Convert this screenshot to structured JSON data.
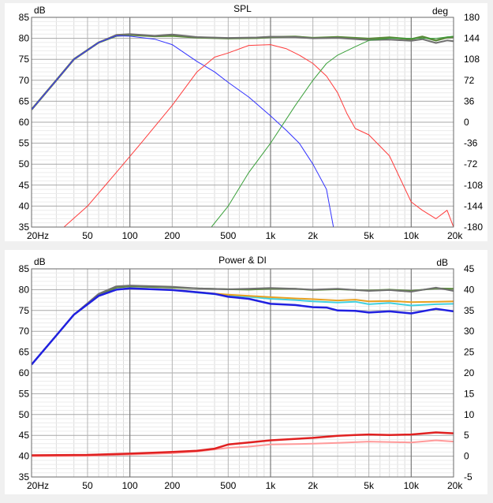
{
  "chart_data": [
    {
      "type": "line",
      "title": "SPL",
      "left_unit": "dB",
      "right_unit": "deg",
      "x_scale": "log",
      "xlim": [
        20,
        20000
      ],
      "ylim": [
        35,
        85
      ],
      "y2lim": [
        -180,
        180
      ],
      "grid": true,
      "x_ticks": [
        {
          "value": 20,
          "label": "20Hz"
        },
        {
          "value": 50,
          "label": "50"
        },
        {
          "value": 100,
          "label": "100"
        },
        {
          "value": 200,
          "label": "200"
        },
        {
          "value": 500,
          "label": "500"
        },
        {
          "value": 1000,
          "label": "1k"
        },
        {
          "value": 2000,
          "label": "2k"
        },
        {
          "value": 5000,
          "label": "5k"
        },
        {
          "value": 10000,
          "label": "10k"
        },
        {
          "value": 20000,
          "label": "20k"
        }
      ],
      "y_ticks": [
        35,
        40,
        45,
        50,
        55,
        60,
        65,
        70,
        75,
        80,
        85
      ],
      "y2_ticks": [
        "-180",
        "-144",
        "-108",
        "-72",
        "-36",
        "0",
        "36",
        "72",
        "108",
        "144",
        "180"
      ],
      "series": [
        {
          "color": "#5a8a3a",
          "width": 2.5,
          "points": [
            [
              20,
              63
            ],
            [
              30,
              70
            ],
            [
              40,
              75
            ],
            [
              60,
              79
            ],
            [
              80,
              80.6
            ],
            [
              100,
              80.8
            ],
            [
              150,
              80.5
            ],
            [
              200,
              80.6
            ],
            [
              300,
              80.2
            ],
            [
              500,
              80.0
            ],
            [
              800,
              80.1
            ],
            [
              1000,
              80.3
            ],
            [
              1500,
              80.4
            ],
            [
              2000,
              80.1
            ],
            [
              3000,
              80.3
            ],
            [
              5000,
              79.9
            ],
            [
              7000,
              80.2
            ],
            [
              10000,
              79.8
            ],
            [
              12000,
              80.4
            ],
            [
              15000,
              79.5
            ],
            [
              18000,
              80.2
            ],
            [
              20000,
              80.3
            ]
          ]
        },
        {
          "color": "#707070",
          "width": 2,
          "points": [
            [
              20,
              63
            ],
            [
              30,
              70
            ],
            [
              40,
              75
            ],
            [
              60,
              79
            ],
            [
              80,
              80.8
            ],
            [
              100,
              81
            ],
            [
              150,
              80.6
            ],
            [
              200,
              80.9
            ],
            [
              300,
              80.3
            ],
            [
              500,
              80.1
            ],
            [
              800,
              80.2
            ],
            [
              1000,
              80.4
            ],
            [
              1500,
              80.3
            ],
            [
              2000,
              80.0
            ],
            [
              3000,
              80.1
            ],
            [
              5000,
              79.6
            ],
            [
              7000,
              79.7
            ],
            [
              10000,
              79.4
            ],
            [
              12000,
              79.8
            ],
            [
              15000,
              78.9
            ],
            [
              18000,
              79.5
            ],
            [
              20000,
              79.3
            ]
          ]
        },
        {
          "color": "#3232ff",
          "width": 1,
          "points": [
            [
              20,
              63
            ],
            [
              30,
              70
            ],
            [
              40,
              75
            ],
            [
              60,
              79
            ],
            [
              80,
              80.6
            ],
            [
              100,
              80.5
            ],
            [
              150,
              79.8
            ],
            [
              200,
              78.5
            ],
            [
              300,
              74.5
            ],
            [
              400,
              72
            ],
            [
              500,
              69.5
            ],
            [
              700,
              66
            ],
            [
              1000,
              61.5
            ],
            [
              1300,
              58
            ],
            [
              1600,
              55
            ],
            [
              2000,
              50
            ],
            [
              2500,
              44
            ],
            [
              2800,
              35
            ]
          ]
        },
        {
          "color": "#ff3c3c",
          "width": 1,
          "points": [
            [
              34,
              35
            ],
            [
              50,
              40
            ],
            [
              80,
              48
            ],
            [
              120,
              55
            ],
            [
              200,
              64
            ],
            [
              300,
              72
            ],
            [
              400,
              75.5
            ],
            [
              500,
              76.5
            ],
            [
              700,
              78.3
            ],
            [
              1000,
              78.5
            ],
            [
              1300,
              77.5
            ],
            [
              1600,
              76
            ],
            [
              2000,
              74
            ],
            [
              2500,
              71
            ],
            [
              3000,
              67
            ],
            [
              3500,
              62
            ],
            [
              4000,
              58.5
            ],
            [
              5000,
              57
            ],
            [
              7000,
              52
            ],
            [
              10000,
              41
            ],
            [
              12000,
              39
            ],
            [
              15000,
              37
            ],
            [
              18000,
              39
            ],
            [
              20000,
              35
            ]
          ]
        },
        {
          "color": "#3aa03a",
          "width": 1,
          "points": [
            [
              380,
              35
            ],
            [
              500,
              40
            ],
            [
              700,
              48
            ],
            [
              1000,
              55
            ],
            [
              1500,
              64
            ],
            [
              2000,
              70
            ],
            [
              2500,
              74
            ],
            [
              3000,
              76
            ],
            [
              4000,
              78
            ],
            [
              5000,
              79.5
            ],
            [
              7000,
              80
            ],
            [
              10000,
              80
            ],
            [
              15000,
              80
            ],
            [
              20000,
              80.5
            ]
          ]
        }
      ]
    },
    {
      "type": "line",
      "title": "Power & DI",
      "left_unit": "dB",
      "right_unit": "dB",
      "x_scale": "log",
      "xlim": [
        20,
        20000
      ],
      "ylim": [
        35,
        85
      ],
      "y2lim": [
        -5,
        45
      ],
      "grid": true,
      "x_ticks": [
        {
          "value": 20,
          "label": "20Hz"
        },
        {
          "value": 50,
          "label": "50"
        },
        {
          "value": 100,
          "label": "100"
        },
        {
          "value": 200,
          "label": "200"
        },
        {
          "value": 500,
          "label": "500"
        },
        {
          "value": 1000,
          "label": "1k"
        },
        {
          "value": 2000,
          "label": "2k"
        },
        {
          "value": 5000,
          "label": "5k"
        },
        {
          "value": 10000,
          "label": "10k"
        },
        {
          "value": 20000,
          "label": "20k"
        }
      ],
      "y_ticks": [
        35,
        40,
        45,
        50,
        55,
        60,
        65,
        70,
        75,
        80,
        85
      ],
      "y2_ticks": [
        "-5",
        "0",
        "5",
        "10",
        "15",
        "20",
        "25",
        "30",
        "35",
        "40",
        "45"
      ],
      "series": [
        {
          "color": "#40d0e0",
          "width": 2,
          "points": [
            [
              20,
              62
            ],
            [
              30,
              69
            ],
            [
              40,
              74
            ],
            [
              60,
              78.5
            ],
            [
              80,
              80
            ],
            [
              100,
              80.3
            ],
            [
              200,
              80
            ],
            [
              300,
              79.3
            ],
            [
              500,
              78.6
            ],
            [
              700,
              78.3
            ],
            [
              1000,
              77.8
            ],
            [
              1500,
              77.5
            ],
            [
              2000,
              77.2
            ],
            [
              3000,
              76.9
            ],
            [
              4000,
              77.1
            ],
            [
              5000,
              76.5
            ],
            [
              7000,
              76.8
            ],
            [
              10000,
              76.2
            ],
            [
              15000,
              76.5
            ],
            [
              20000,
              76.6
            ]
          ]
        },
        {
          "color": "#e8a020",
          "width": 2,
          "points": [
            [
              20,
              62
            ],
            [
              30,
              69
            ],
            [
              40,
              74
            ],
            [
              60,
              78.5
            ],
            [
              80,
              80
            ],
            [
              100,
              80.3
            ],
            [
              200,
              80
            ],
            [
              300,
              79.4
            ],
            [
              500,
              78.8
            ],
            [
              700,
              78.5
            ],
            [
              1000,
              78.2
            ],
            [
              1500,
              77.9
            ],
            [
              2000,
              77.7
            ],
            [
              3000,
              77.4
            ],
            [
              4000,
              77.6
            ],
            [
              5000,
              77.2
            ],
            [
              7000,
              77.3
            ],
            [
              10000,
              77
            ],
            [
              15000,
              77.1
            ],
            [
              20000,
              77.2
            ]
          ]
        },
        {
          "color": "#5a8a3a",
          "width": 2,
          "points": [
            [
              20,
              62
            ],
            [
              30,
              69
            ],
            [
              40,
              74
            ],
            [
              60,
              78.8
            ],
            [
              80,
              80.5
            ],
            [
              100,
              80.8
            ],
            [
              200,
              80.5
            ],
            [
              300,
              80.3
            ],
            [
              500,
              80.1
            ],
            [
              700,
              80
            ],
            [
              1000,
              80.2
            ],
            [
              1500,
              80.2
            ],
            [
              2000,
              79.9
            ],
            [
              3000,
              80.1
            ],
            [
              5000,
              79.8
            ],
            [
              7000,
              80
            ],
            [
              10000,
              79.7
            ],
            [
              15000,
              80.3
            ],
            [
              20000,
              80.2
            ]
          ]
        },
        {
          "color": "#707070",
          "width": 2,
          "points": [
            [
              20,
              62
            ],
            [
              30,
              69
            ],
            [
              40,
              74
            ],
            [
              60,
              79
            ],
            [
              80,
              80.8
            ],
            [
              100,
              81
            ],
            [
              200,
              80.7
            ],
            [
              300,
              80.3
            ],
            [
              500,
              80.1
            ],
            [
              700,
              80.2
            ],
            [
              1000,
              80.4
            ],
            [
              1500,
              80.2
            ],
            [
              2000,
              80
            ],
            [
              3000,
              80.2
            ],
            [
              5000,
              79.7
            ],
            [
              7000,
              79.9
            ],
            [
              10000,
              79.5
            ],
            [
              15000,
              80.5
            ],
            [
              20000,
              79.7
            ]
          ]
        },
        {
          "color": "#2020e0",
          "width": 2.5,
          "points": [
            [
              20,
              62
            ],
            [
              30,
              69
            ],
            [
              40,
              74
            ],
            [
              60,
              78.5
            ],
            [
              80,
              80
            ],
            [
              100,
              80.3
            ],
            [
              200,
              79.9
            ],
            [
              300,
              79.4
            ],
            [
              400,
              79
            ],
            [
              500,
              78.3
            ],
            [
              700,
              77.8
            ],
            [
              1000,
              76.6
            ],
            [
              1500,
              76.3
            ],
            [
              2000,
              75.8
            ],
            [
              2500,
              75.7
            ],
            [
              3000,
              75
            ],
            [
              4000,
              74.9
            ],
            [
              5000,
              74.5
            ],
            [
              7000,
              74.8
            ],
            [
              10000,
              74.3
            ],
            [
              15000,
              75.4
            ],
            [
              20000,
              74.8
            ]
          ]
        },
        {
          "color": "#ff9a9a",
          "width": 2,
          "points": [
            [
              20,
              40
            ],
            [
              50,
              40.1
            ],
            [
              100,
              40.4
            ],
            [
              200,
              40.7
            ],
            [
              300,
              41.1
            ],
            [
              500,
              42
            ],
            [
              700,
              42.3
            ],
            [
              1000,
              42.8
            ],
            [
              2000,
              43
            ],
            [
              3000,
              43.2
            ],
            [
              5000,
              43.5
            ],
            [
              10000,
              43.3
            ],
            [
              15000,
              43.8
            ],
            [
              20000,
              43.5
            ]
          ]
        },
        {
          "color": "#e02020",
          "width": 2.5,
          "points": [
            [
              20,
              40.2
            ],
            [
              50,
              40.3
            ],
            [
              100,
              40.6
            ],
            [
              200,
              41
            ],
            [
              300,
              41.3
            ],
            [
              400,
              41.8
            ],
            [
              500,
              42.8
            ],
            [
              700,
              43.3
            ],
            [
              1000,
              43.8
            ],
            [
              2000,
              44.4
            ],
            [
              3000,
              44.9
            ],
            [
              4000,
              45.1
            ],
            [
              5000,
              45.2
            ],
            [
              7000,
              45.1
            ],
            [
              10000,
              45.2
            ],
            [
              15000,
              45.7
            ],
            [
              20000,
              45.5
            ]
          ]
        }
      ]
    }
  ]
}
